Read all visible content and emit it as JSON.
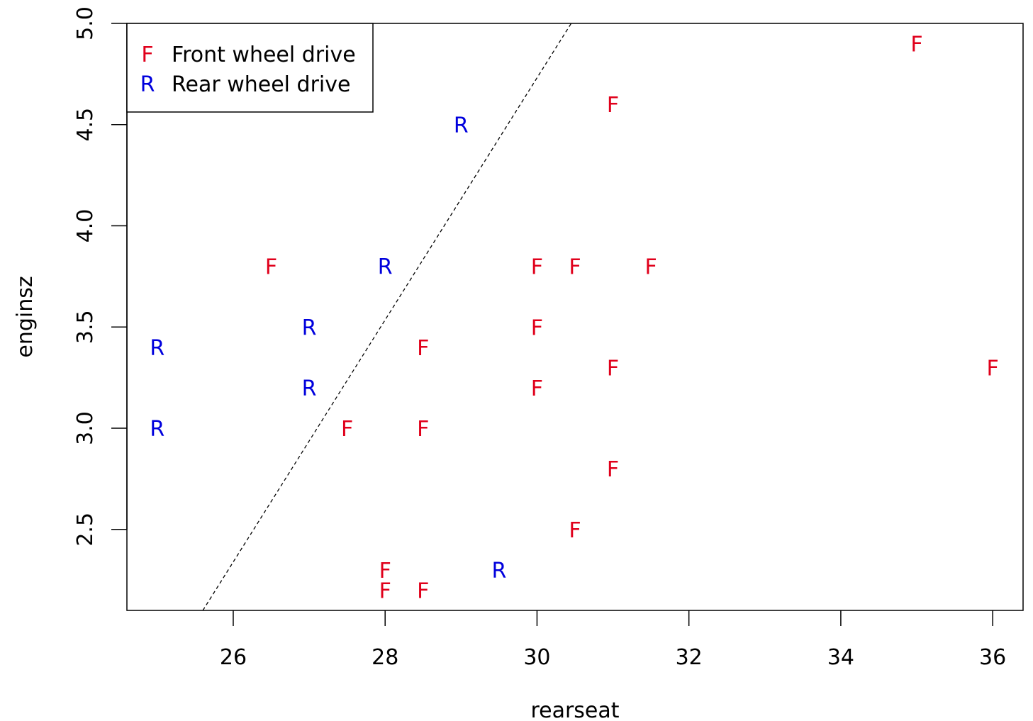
{
  "chart_data": {
    "type": "scatter",
    "xlabel": "rearseat",
    "ylabel": "enginsz",
    "xlim": [
      24.6,
      36.4
    ],
    "ylim": [
      2.1,
      5.0
    ],
    "x_ticks": [
      26,
      28,
      30,
      32,
      34,
      36
    ],
    "y_ticks": [
      2.5,
      3.0,
      3.5,
      4.0,
      4.5,
      5.0
    ],
    "x_tick_labels": [
      "26",
      "28",
      "30",
      "32",
      "34",
      "36"
    ],
    "y_tick_labels": [
      "2.5",
      "3.0",
      "3.5",
      "4.0",
      "4.5",
      "5.0"
    ],
    "grid": false,
    "legend_position": "top-left",
    "series": [
      {
        "name": "Front wheel drive",
        "marker": "F",
        "color": "#e0001b",
        "points": [
          [
            35.0,
            4.9
          ],
          [
            31.0,
            4.6
          ],
          [
            26.5,
            3.8
          ],
          [
            30.0,
            3.8
          ],
          [
            30.5,
            3.8
          ],
          [
            31.5,
            3.8
          ],
          [
            30.0,
            3.5
          ],
          [
            28.5,
            3.4
          ],
          [
            31.0,
            3.3
          ],
          [
            36.0,
            3.3
          ],
          [
            30.0,
            3.2
          ],
          [
            27.5,
            3.0
          ],
          [
            28.5,
            3.0
          ],
          [
            31.0,
            2.8
          ],
          [
            30.5,
            2.5
          ],
          [
            28.0,
            2.3
          ],
          [
            28.0,
            2.2
          ],
          [
            28.5,
            2.2
          ]
        ]
      },
      {
        "name": "Rear wheel drive",
        "marker": "R",
        "color": "#0000dd",
        "points": [
          [
            29.0,
            4.5
          ],
          [
            28.0,
            3.8
          ],
          [
            27.0,
            3.5
          ],
          [
            25.0,
            3.4
          ],
          [
            27.0,
            3.2
          ],
          [
            25.0,
            3.0
          ],
          [
            29.5,
            2.3
          ]
        ]
      }
    ],
    "reference_line": {
      "style": "dashed",
      "color": "#000000",
      "points": [
        [
          25.6,
          2.1
        ],
        [
          30.45,
          5.0
        ]
      ]
    }
  }
}
